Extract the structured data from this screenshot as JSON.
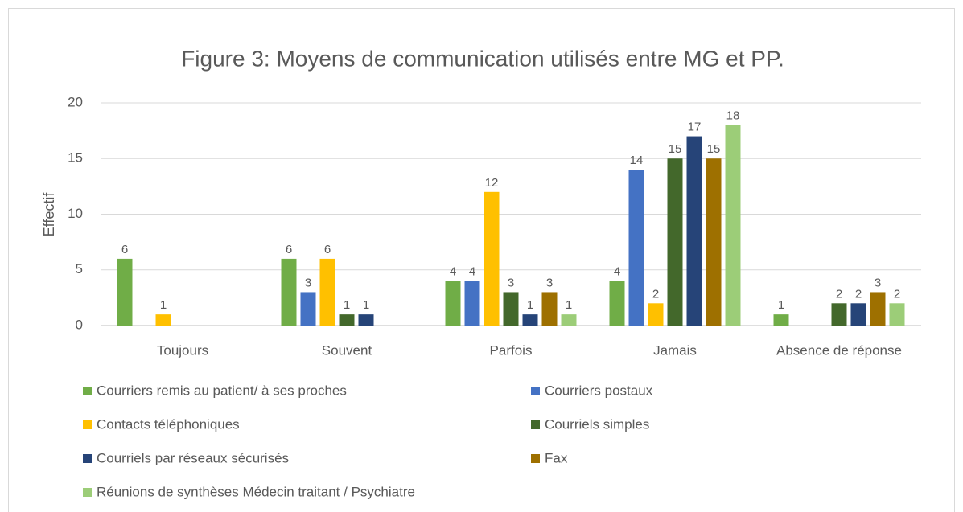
{
  "chart_data": {
    "type": "bar",
    "title": "Figure 3: Moyens de communication utilisés entre MG et PP.",
    "y_label": "Effectif",
    "categories": [
      "Toujours",
      "Souvent",
      "Parfois",
      "Jamais",
      "Absence de réponse"
    ],
    "series": [
      {
        "name": "Courriers remis au patient/ à ses proches",
        "color": "#70ad47",
        "values": [
          6,
          6,
          4,
          4,
          1
        ]
      },
      {
        "name": "Courriers postaux",
        "color": "#4472c4",
        "values": [
          0,
          3,
          4,
          14,
          0
        ]
      },
      {
        "name": "Contacts téléphoniques",
        "color": "#ffc000",
        "values": [
          1,
          6,
          12,
          2,
          0
        ]
      },
      {
        "name": "Courriels simples",
        "color": "#43682b",
        "values": [
          0,
          1,
          3,
          15,
          2
        ]
      },
      {
        "name": "Courriels par réseaux sécurisés",
        "color": "#264478",
        "values": [
          0,
          1,
          1,
          17,
          2
        ]
      },
      {
        "name": "Fax",
        "color": "#9e7000",
        "values": [
          0,
          0,
          3,
          15,
          3
        ]
      },
      {
        "name": "Réunions de synthèses Médecin traitant / Psychiatre",
        "color": "#9ccd78",
        "values": [
          0,
          0,
          1,
          18,
          2
        ]
      }
    ],
    "ylim": [
      0,
      20
    ],
    "yticks": [
      0,
      5,
      10,
      15,
      20
    ],
    "grid": true,
    "data_labels": true
  }
}
